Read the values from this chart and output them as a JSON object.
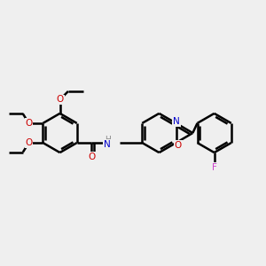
{
  "background_color": "#efefef",
  "line_color": "#000000",
  "bond_width": 1.8,
  "figsize": [
    3.0,
    3.0
  ],
  "dpi": 100,
  "atoms": {
    "O_red": "#cc0000",
    "N_blue": "#0000cc",
    "F_magenta": "#cc44cc",
    "C_black": "#000000",
    "H_gray": "#777777"
  },
  "xlim": [
    0,
    10
  ],
  "ylim": [
    2,
    8
  ]
}
